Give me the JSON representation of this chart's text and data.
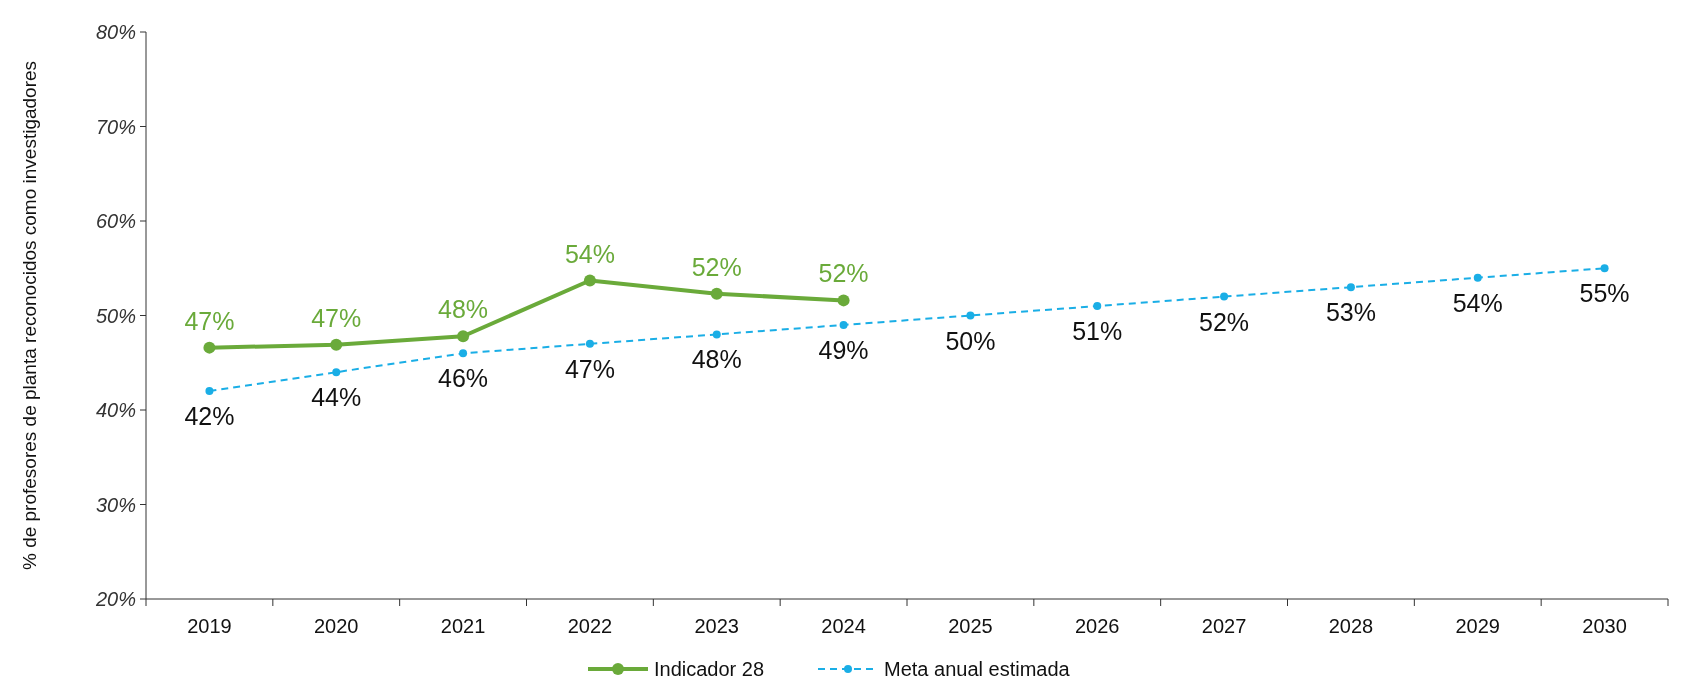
{
  "chart_data": {
    "type": "line",
    "ylabel": "% de profesores de planta reconocidos como investigadores",
    "categories": [
      "2019",
      "2020",
      "2021",
      "2022",
      "2023",
      "2024",
      "2025",
      "2026",
      "2027",
      "2028",
      "2029",
      "2030"
    ],
    "ylim": [
      20,
      80
    ],
    "yticks": [
      {
        "value": 20,
        "label": "20%"
      },
      {
        "value": 30,
        "label": "30%"
      },
      {
        "value": 40,
        "label": "40%"
      },
      {
        "value": 50,
        "label": "50%"
      },
      {
        "value": 60,
        "label": "60%"
      },
      {
        "value": 70,
        "label": "70%"
      },
      {
        "value": 80,
        "label": "80%"
      }
    ],
    "legend": "bottom",
    "marker": "circle",
    "grid": false,
    "series": [
      {
        "name": "Indicador 28",
        "color": "#6aaa3a",
        "line_style": "solid",
        "values": [
          46.6,
          46.9,
          47.8,
          53.7,
          52.3,
          51.6,
          null,
          null,
          null,
          null,
          null,
          null
        ],
        "value_labels": [
          "47%",
          "47%",
          "48%",
          "54%",
          "52%",
          "52%",
          null,
          null,
          null,
          null,
          null,
          null
        ]
      },
      {
        "name": "Meta anual estimada",
        "color": "#1aaee6",
        "line_style": "dashed",
        "values": [
          42,
          44,
          46,
          47,
          48,
          49,
          50,
          51,
          52,
          53,
          54,
          55
        ],
        "value_labels": [
          "42%",
          "44%",
          "46%",
          "47%",
          "48%",
          "49%",
          "50%",
          "51%",
          "52%",
          "53%",
          "54%",
          "55%"
        ]
      }
    ]
  }
}
